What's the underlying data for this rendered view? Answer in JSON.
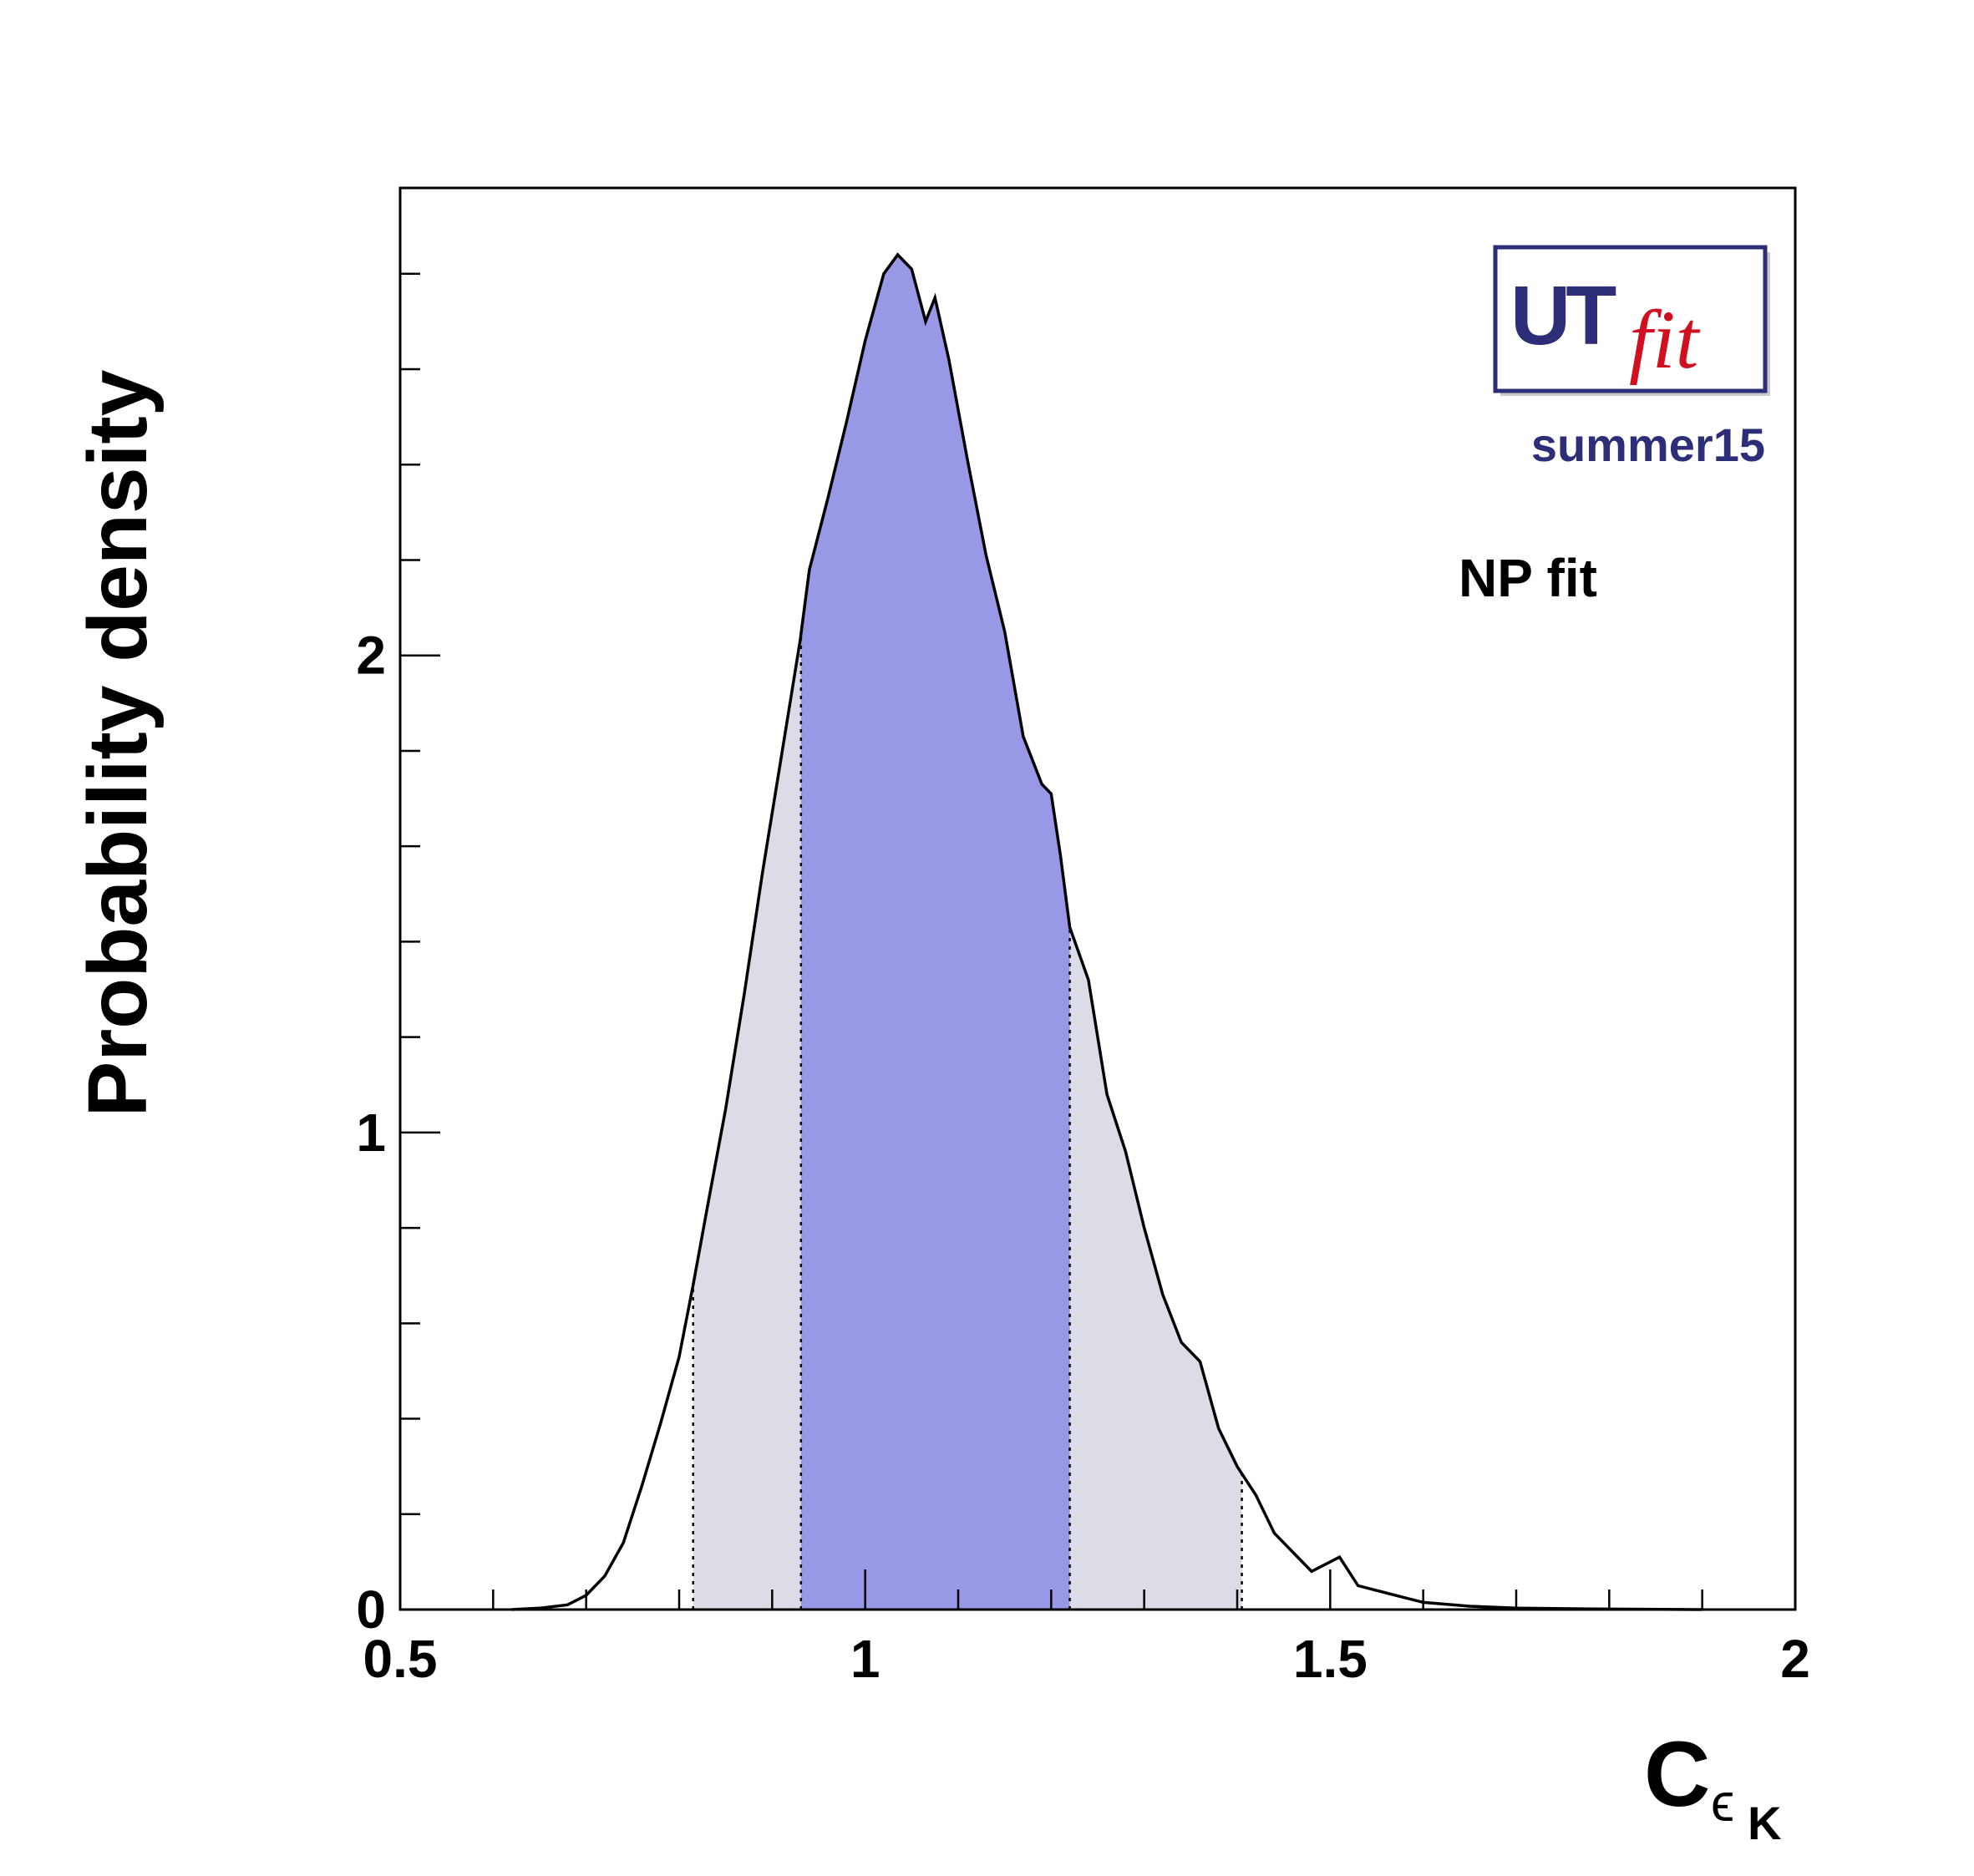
{
  "chart_data": {
    "type": "area",
    "title": "",
    "xlabel": "C",
    "xlabel_subscript": "ϵ",
    "xlabel_subsubscript": "K",
    "ylabel": "Probability density",
    "xlim": [
      0.5,
      2.0
    ],
    "ylim": [
      0,
      2.98
    ],
    "x_ticks": [
      0.5,
      1,
      1.5,
      2
    ],
    "x_tick_labels": [
      "0.5",
      "1",
      "1.5",
      "2"
    ],
    "y_ticks": [
      0,
      1,
      2
    ],
    "y_tick_labels": [
      "0",
      "1",
      "2"
    ],
    "grid": false,
    "legend": "none",
    "colors": {
      "curve": "#000000",
      "band_68": "#9898e6",
      "band_95": "#dcdce6",
      "logo_text": "#2e2e78",
      "logo_fit": "#d0101e"
    },
    "intervals": {
      "inner_68": [
        0.931,
        1.22
      ],
      "outer_95": [
        0.815,
        1.405
      ]
    },
    "series": [
      {
        "x": [
          0.62,
          0.65,
          0.68,
          0.7,
          0.72,
          0.74,
          0.76,
          0.78,
          0.8,
          0.815,
          0.83,
          0.85,
          0.87,
          0.89,
          0.91,
          0.93,
          0.94,
          0.96,
          0.98,
          1.0,
          1.02,
          1.035,
          1.05,
          1.065,
          1.075,
          1.09,
          1.11,
          1.13,
          1.15,
          1.17,
          1.19,
          1.2,
          1.21,
          1.22,
          1.24,
          1.26,
          1.28,
          1.3,
          1.32,
          1.34,
          1.36,
          1.38,
          1.4,
          1.42,
          1.44,
          1.46,
          1.48,
          1.5,
          1.51,
          1.52,
          1.53,
          1.55,
          1.57,
          1.6,
          1.65,
          1.7,
          1.8,
          1.9
        ],
        "values": [
          0.0,
          0.003,
          0.01,
          0.03,
          0.07,
          0.14,
          0.26,
          0.39,
          0.53,
          0.68,
          0.84,
          1.05,
          1.29,
          1.55,
          1.79,
          2.03,
          2.18,
          2.33,
          2.49,
          2.66,
          2.8,
          2.84,
          2.81,
          2.7,
          2.75,
          2.62,
          2.41,
          2.21,
          2.05,
          1.83,
          1.73,
          1.71,
          1.58,
          1.43,
          1.32,
          1.08,
          0.96,
          0.8,
          0.66,
          0.56,
          0.52,
          0.38,
          0.3,
          0.24,
          0.16,
          0.12,
          0.08,
          0.1,
          0.11,
          0.08,
          0.05,
          0.04,
          0.03,
          0.015,
          0.007,
          0.003,
          0.001,
          0.0
        ]
      }
    ]
  },
  "logo": {
    "ut": "UT",
    "fit": "fit",
    "subtitle": "summer15"
  },
  "annotation": "NP fit"
}
